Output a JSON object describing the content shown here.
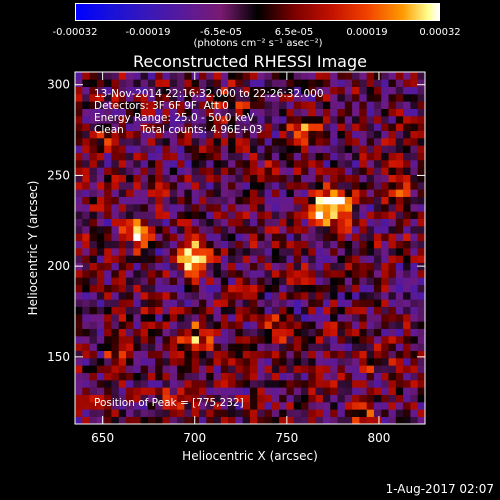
{
  "colorbar": {
    "ticks": [
      "-0.00032",
      "-0.00019",
      "-6.5e-05",
      "6.5e-05",
      "0.00019",
      "0.00032"
    ],
    "unit": "(photons cm⁻² s⁻¹ asec⁻²)",
    "range": [
      -0.00032,
      0.00032
    ],
    "colors": [
      "#0000ff",
      "#5a1a98",
      "#000000",
      "#c01000",
      "#ff9a00",
      "#ffffff"
    ]
  },
  "chart_data": {
    "type": "heatmap",
    "title": "Reconstructed RHESSI Image",
    "xlabel": "Heliocentric X (arcsec)",
    "ylabel": "Heliocentric Y (arcsec)",
    "xlim": [
      635,
      825
    ],
    "ylim": [
      113,
      307
    ],
    "x_ticks": [
      "650",
      "700",
      "750",
      "800"
    ],
    "y_ticks": [
      "150",
      "200",
      "250",
      "300"
    ],
    "annotations": [
      "13-Nov-2014 22:16:32.000 to 22:26:32.000",
      "Detectors: 3F 6F 9F  Att 0",
      "Energy Range: 25.0 - 50.0 keV",
      "Clean     Total counts: 4.96E+03"
    ],
    "peak_label": "Position of Peak = [775,232]",
    "peak": [
      775,
      232
    ]
  },
  "footer": {
    "date": "1-Aug-2017 02:07"
  }
}
